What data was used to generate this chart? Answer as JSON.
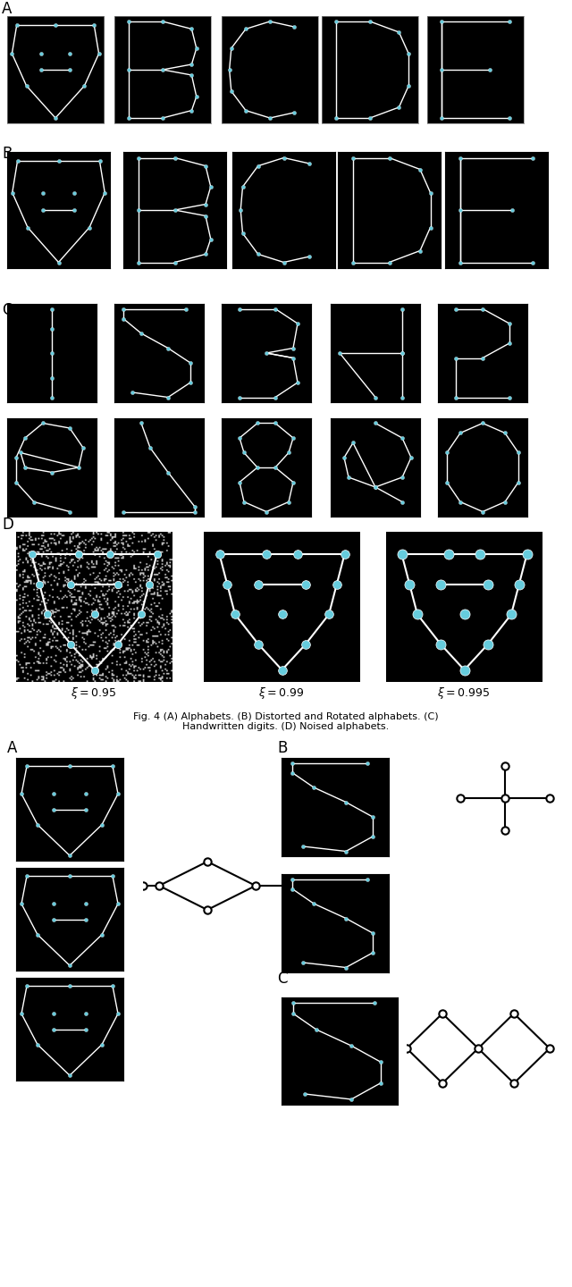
{
  "fig_width": 6.4,
  "fig_height": 14.4,
  "bg_color": "#ffffff",
  "section_labels": {
    "A_top": "A",
    "B_top": "B",
    "C_top": "C",
    "D_top": "D"
  },
  "caption": "Fig. 4 (A) Alphabets. (B) Distorted and Rotated alphabets. (C)\nHandwritten digits. (D) Noised alphabets.",
  "xi_labels": [
    "ξ = 0.95",
    "ξ = 0.99",
    "ξ = 0.995"
  ],
  "node_color": "#66ccdd",
  "line_color": "#ffffff",
  "black": "#000000",
  "white": "#ffffff",
  "graph_node_color": "#000000",
  "graph_edge_color": "#000000"
}
